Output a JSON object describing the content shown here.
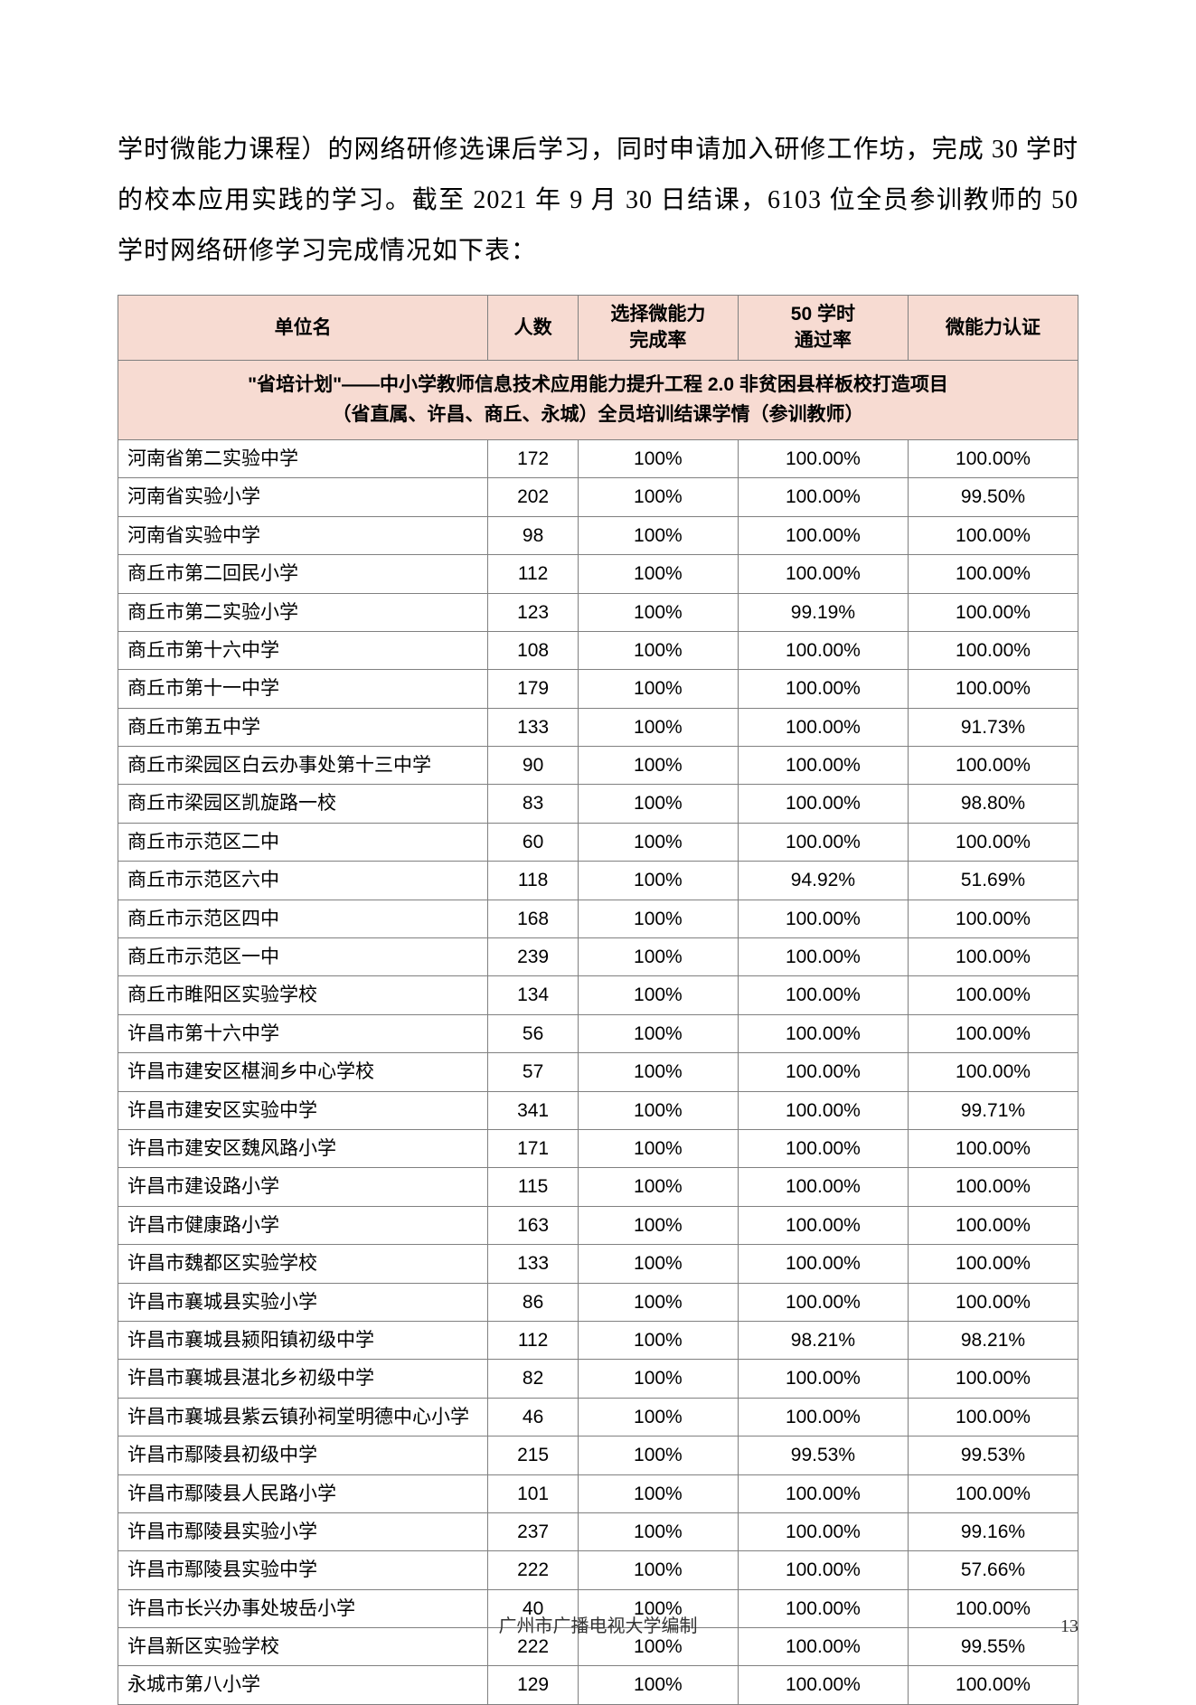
{
  "paragraph": "学时微能力课程）的网络研修选课后学习，同时申请加入研修工作坊，完成 30 学时的校本应用实践的学习。截至 2021 年 9 月 30 日结课，6103 位全员参训教师的 50 学时网络研修学习完成情况如下表：",
  "table": {
    "title_line1": "\"省培计划\"——中小学教师信息技术应用能力提升工程 2.0 非贫困县样板校打造项目",
    "title_line2": "（省直属、许昌、商丘、永城）全员培训结课学情（参训教师）",
    "headers": {
      "unit": "单位名",
      "count": "人数",
      "select_rate": "选择微能力\n完成率",
      "pass_rate": "50 学时\n通过率",
      "cert": "微能力认证"
    },
    "col_widths": {
      "unit": 370,
      "count": 90,
      "select_rate": 160,
      "pass_rate": 170,
      "cert": 170
    },
    "header_bg": "#f7dbd2",
    "border_color": "#808080",
    "rows": [
      {
        "unit": "河南省第二实验中学",
        "count": "172",
        "select_rate": "100%",
        "pass_rate": "100.00%",
        "cert": "100.00%"
      },
      {
        "unit": "河南省实验小学",
        "count": "202",
        "select_rate": "100%",
        "pass_rate": "100.00%",
        "cert": "99.50%"
      },
      {
        "unit": "河南省实验中学",
        "count": "98",
        "select_rate": "100%",
        "pass_rate": "100.00%",
        "cert": "100.00%"
      },
      {
        "unit": "商丘市第二回民小学",
        "count": "112",
        "select_rate": "100%",
        "pass_rate": "100.00%",
        "cert": "100.00%"
      },
      {
        "unit": "商丘市第二实验小学",
        "count": "123",
        "select_rate": "100%",
        "pass_rate": "99.19%",
        "cert": "100.00%"
      },
      {
        "unit": "商丘市第十六中学",
        "count": "108",
        "select_rate": "100%",
        "pass_rate": "100.00%",
        "cert": "100.00%"
      },
      {
        "unit": "商丘市第十一中学",
        "count": "179",
        "select_rate": "100%",
        "pass_rate": "100.00%",
        "cert": "100.00%"
      },
      {
        "unit": "商丘市第五中学",
        "count": "133",
        "select_rate": "100%",
        "pass_rate": "100.00%",
        "cert": "91.73%"
      },
      {
        "unit": "商丘市梁园区白云办事处第十三中学",
        "count": "90",
        "select_rate": "100%",
        "pass_rate": "100.00%",
        "cert": "100.00%"
      },
      {
        "unit": "商丘市梁园区凯旋路一校",
        "count": "83",
        "select_rate": "100%",
        "pass_rate": "100.00%",
        "cert": "98.80%"
      },
      {
        "unit": "商丘市示范区二中",
        "count": "60",
        "select_rate": "100%",
        "pass_rate": "100.00%",
        "cert": "100.00%"
      },
      {
        "unit": "商丘市示范区六中",
        "count": "118",
        "select_rate": "100%",
        "pass_rate": "94.92%",
        "cert": "51.69%"
      },
      {
        "unit": "商丘市示范区四中",
        "count": "168",
        "select_rate": "100%",
        "pass_rate": "100.00%",
        "cert": "100.00%"
      },
      {
        "unit": "商丘市示范区一中",
        "count": "239",
        "select_rate": "100%",
        "pass_rate": "100.00%",
        "cert": "100.00%"
      },
      {
        "unit": "商丘市睢阳区实验学校",
        "count": "134",
        "select_rate": "100%",
        "pass_rate": "100.00%",
        "cert": "100.00%"
      },
      {
        "unit": "许昌市第十六中学",
        "count": "56",
        "select_rate": "100%",
        "pass_rate": "100.00%",
        "cert": "100.00%"
      },
      {
        "unit": "许昌市建安区椹涧乡中心学校",
        "count": "57",
        "select_rate": "100%",
        "pass_rate": "100.00%",
        "cert": "100.00%"
      },
      {
        "unit": "许昌市建安区实验中学",
        "count": "341",
        "select_rate": "100%",
        "pass_rate": "100.00%",
        "cert": "99.71%"
      },
      {
        "unit": "许昌市建安区魏风路小学",
        "count": "171",
        "select_rate": "100%",
        "pass_rate": "100.00%",
        "cert": "100.00%"
      },
      {
        "unit": "许昌市建设路小学",
        "count": "115",
        "select_rate": "100%",
        "pass_rate": "100.00%",
        "cert": "100.00%"
      },
      {
        "unit": "许昌市健康路小学",
        "count": "163",
        "select_rate": "100%",
        "pass_rate": "100.00%",
        "cert": "100.00%"
      },
      {
        "unit": "许昌市魏都区实验学校",
        "count": "133",
        "select_rate": "100%",
        "pass_rate": "100.00%",
        "cert": "100.00%"
      },
      {
        "unit": "许昌市襄城县实验小学",
        "count": "86",
        "select_rate": "100%",
        "pass_rate": "100.00%",
        "cert": "100.00%"
      },
      {
        "unit": "许昌市襄城县颍阳镇初级中学",
        "count": "112",
        "select_rate": "100%",
        "pass_rate": "98.21%",
        "cert": "98.21%"
      },
      {
        "unit": "许昌市襄城县湛北乡初级中学",
        "count": "82",
        "select_rate": "100%",
        "pass_rate": "100.00%",
        "cert": "100.00%"
      },
      {
        "unit": "许昌市襄城县紫云镇孙祠堂明德中心小学",
        "count": "46",
        "select_rate": "100%",
        "pass_rate": "100.00%",
        "cert": "100.00%"
      },
      {
        "unit": "许昌市鄢陵县初级中学",
        "count": "215",
        "select_rate": "100%",
        "pass_rate": "99.53%",
        "cert": "99.53%"
      },
      {
        "unit": "许昌市鄢陵县人民路小学",
        "count": "101",
        "select_rate": "100%",
        "pass_rate": "100.00%",
        "cert": "100.00%"
      },
      {
        "unit": "许昌市鄢陵县实验小学",
        "count": "237",
        "select_rate": "100%",
        "pass_rate": "100.00%",
        "cert": "99.16%"
      },
      {
        "unit": "许昌市鄢陵县实验中学",
        "count": "222",
        "select_rate": "100%",
        "pass_rate": "100.00%",
        "cert": "57.66%"
      },
      {
        "unit": "许昌市长兴办事处坡岳小学",
        "count": "40",
        "select_rate": "100%",
        "pass_rate": "100.00%",
        "cert": "100.00%"
      },
      {
        "unit": "许昌新区实验学校",
        "count": "222",
        "select_rate": "100%",
        "pass_rate": "100.00%",
        "cert": "99.55%"
      },
      {
        "unit": "永城市第八小学",
        "count": "129",
        "select_rate": "100%",
        "pass_rate": "100.00%",
        "cert": "100.00%"
      }
    ]
  },
  "footer": "广州市广播电视大学编制",
  "page_number": "13"
}
